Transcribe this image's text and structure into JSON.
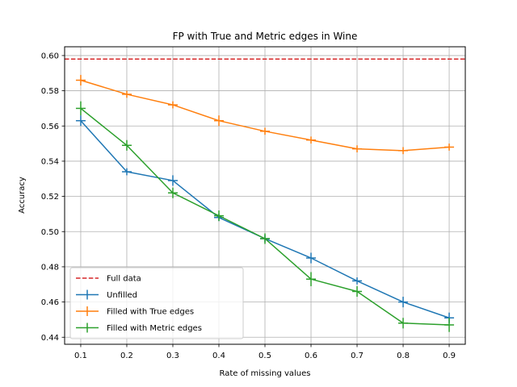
{
  "chart_data": {
    "type": "line",
    "title": "FP with True and Metric edges in Wine",
    "xlabel": "Rate of missing values",
    "ylabel": "Accuracy",
    "x": [
      0.1,
      0.2,
      0.3,
      0.4,
      0.5,
      0.6,
      0.7,
      0.8,
      0.9
    ],
    "xticks": [
      "0.1",
      "0.2",
      "0.3",
      "0.4",
      "0.5",
      "0.6",
      "0.7",
      "0.8",
      "0.9"
    ],
    "yticks": [
      "0.44",
      "0.46",
      "0.48",
      "0.50",
      "0.52",
      "0.54",
      "0.56",
      "0.58",
      "0.60"
    ],
    "xlim": [
      0.065,
      0.935
    ],
    "ylim": [
      0.436,
      0.605
    ],
    "grid": true,
    "legend_position": "lower-left",
    "reference_line": {
      "name": "Full data",
      "value": 0.598,
      "color": "#d62728",
      "style": "dashed"
    },
    "series": [
      {
        "name": "Unfilled",
        "color": "#1f77b4",
        "values": [
          0.563,
          0.534,
          0.529,
          0.508,
          0.496,
          0.485,
          0.472,
          0.46,
          0.451
        ],
        "errors": [
          0.003,
          0.002,
          0.003,
          0.002,
          0.002,
          0.003,
          0.002,
          0.003,
          0.003
        ]
      },
      {
        "name": "Filled with True edges",
        "color": "#ff7f0e",
        "values": [
          0.586,
          0.578,
          0.572,
          0.563,
          0.557,
          0.552,
          0.547,
          0.546,
          0.548
        ],
        "errors": [
          0.003,
          0.002,
          0.002,
          0.003,
          0.002,
          0.002,
          0.002,
          0.002,
          0.002
        ]
      },
      {
        "name": "Filled with Metric edges",
        "color": "#2ca02c",
        "values": [
          0.57,
          0.549,
          0.522,
          0.509,
          0.496,
          0.473,
          0.466,
          0.448,
          0.447
        ],
        "errors": [
          0.004,
          0.003,
          0.003,
          0.003,
          0.003,
          0.004,
          0.003,
          0.003,
          0.004
        ]
      }
    ]
  }
}
